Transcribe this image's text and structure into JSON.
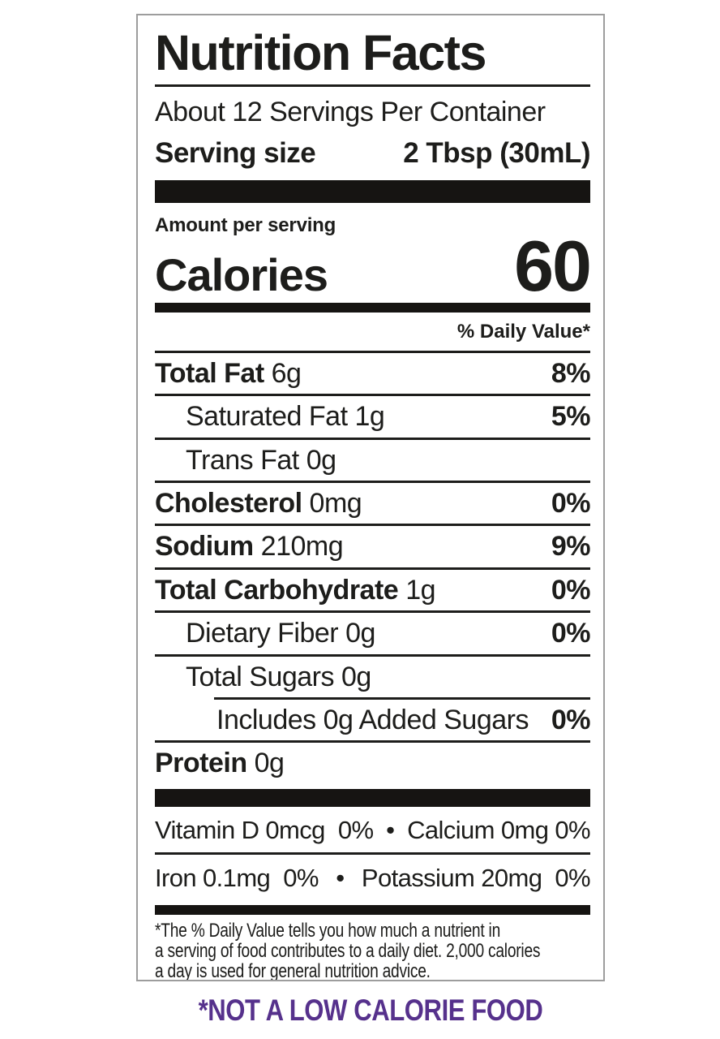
{
  "label": {
    "title": "Nutrition Facts",
    "servings_per_container": "About 12 Servings Per Container",
    "serving_size_label": "Serving size",
    "serving_size_value": "2 Tbsp (30mL)",
    "amount_per_serving": "Amount per serving",
    "calories_label": "Calories",
    "calories_value": "60",
    "daily_value_header": "% Daily Value*",
    "rows": [
      {
        "name": "Total Fat",
        "amount": "6g",
        "dv": "8%"
      },
      {
        "name": "Saturated Fat",
        "amount": "1g",
        "dv": "5%"
      },
      {
        "name": "Trans Fat",
        "amount": "0g",
        "dv": ""
      },
      {
        "name": "Cholesterol",
        "amount": "0mg",
        "dv": "0%"
      },
      {
        "name": "Sodium",
        "amount": "210mg",
        "dv": "9%"
      },
      {
        "name": "Total Carbohydrate",
        "amount": "1g",
        "dv": "0%"
      },
      {
        "name": "Dietary Fiber",
        "amount": "0g",
        "dv": "0%"
      },
      {
        "name": "Total Sugars",
        "amount": "0g",
        "dv": ""
      },
      {
        "name": "Includes 0g Added Sugars",
        "amount": "",
        "dv": "0%"
      },
      {
        "name": "Protein",
        "amount": "0g",
        "dv": ""
      }
    ],
    "micronutrients": [
      {
        "left": "Vitamin D 0mcg  0%",
        "bullet": "•",
        "right": "Calcium 0mg 0%"
      },
      {
        "left": "Iron 0.1mg  0%",
        "bullet": "•",
        "right": "Potassium 20mg  0%"
      }
    ],
    "footnote_lines": [
      "*The % Daily Value tells you how much a nutrient in",
      "a serving of food contributes to a daily diet. 2,000 calories",
      "a day is used for general nutrition advice."
    ]
  },
  "caption": {
    "text": "*NOT A LOW CALORIE FOOD",
    "color": "#56318c"
  },
  "colors": {
    "label_border": "#9d9d9d",
    "ink": "#1d1d1b",
    "bars": "#161412"
  }
}
